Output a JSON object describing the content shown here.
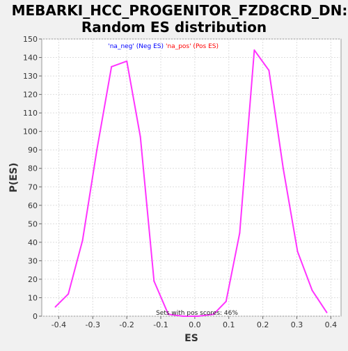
{
  "chart_data": {
    "type": "line",
    "title_line1": "MEBARKI_HCC_PROGENITOR_FZD8CRD_DN:",
    "title_line2": "Random ES distribution",
    "xlabel": "ES",
    "ylabel": "P(ES)",
    "xlim": [
      -0.45,
      0.43
    ],
    "ylim": [
      0,
      150
    ],
    "xticks": [
      -0.4,
      -0.3,
      -0.2,
      -0.1,
      0.0,
      0.1,
      0.2,
      0.3,
      0.4
    ],
    "xtick_labels": [
      "-0.4",
      "-0.3",
      "-0.2",
      "-0.1",
      "0.0",
      "0.1",
      "0.2",
      "0.3",
      "0.4"
    ],
    "yticks": [
      0,
      10,
      20,
      30,
      40,
      50,
      60,
      70,
      80,
      90,
      100,
      110,
      120,
      130,
      140,
      150
    ],
    "ytick_labels": [
      "0",
      "10",
      "20",
      "30",
      "40",
      "50",
      "60",
      "70",
      "80",
      "90",
      "100",
      "110",
      "120",
      "130",
      "140",
      "150"
    ],
    "grid": true,
    "legend_position": "top-center",
    "legend": [
      {
        "name": "'na_neg' (Neg ES)",
        "color": "#0000ff"
      },
      {
        "name": "'na_pos' (Pos ES)",
        "color": "#ff0000"
      }
    ],
    "annotation": "Sets with pos scores: 46%",
    "series": [
      {
        "color": "#ff33ff",
        "x": [
          -0.41,
          -0.372,
          -0.33,
          -0.288,
          -0.245,
          -0.2,
          -0.16,
          -0.12,
          -0.078,
          -0.035,
          0.01,
          0.055,
          0.092,
          0.132,
          0.175,
          0.218,
          0.26,
          0.302,
          0.345,
          0.388
        ],
        "y": [
          5,
          12,
          41,
          90,
          135,
          138,
          97,
          19,
          1,
          0,
          0,
          1,
          8,
          45,
          144,
          133,
          80,
          35,
          14,
          2
        ]
      }
    ]
  }
}
